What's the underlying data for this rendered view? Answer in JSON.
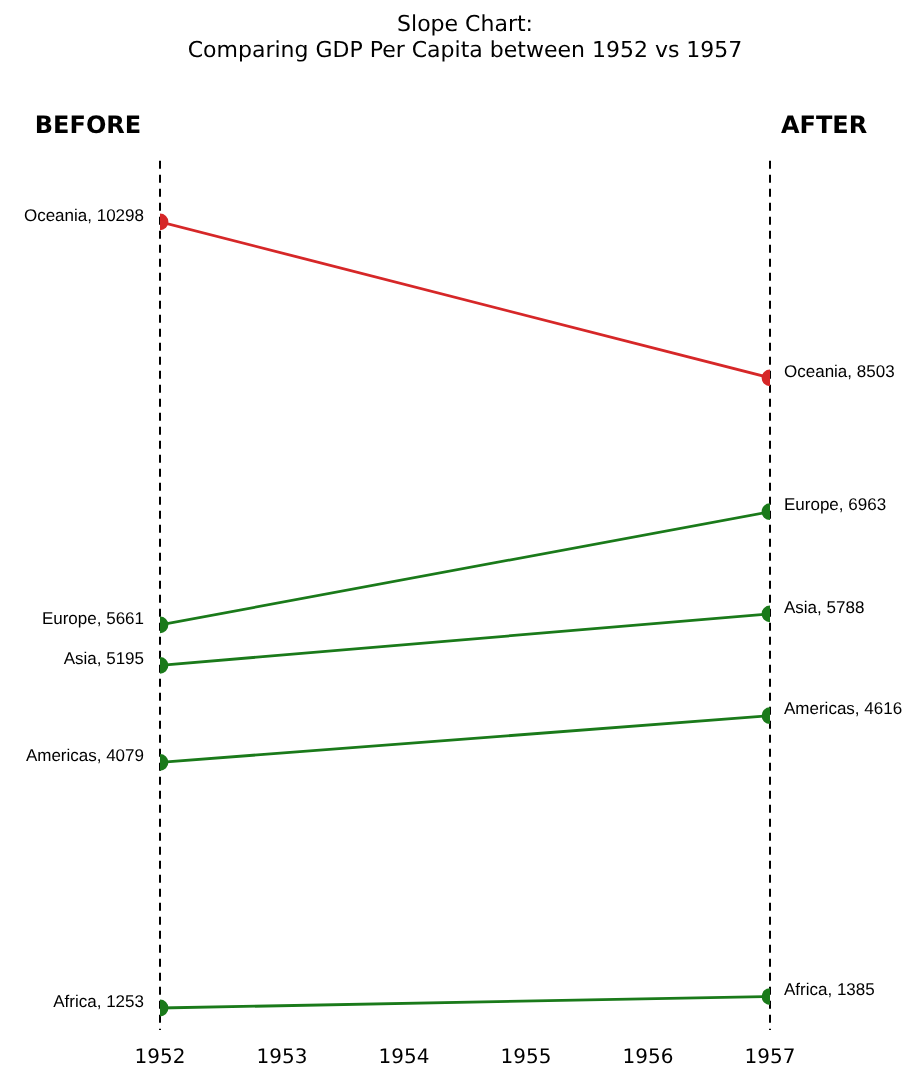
{
  "chart_data": {
    "type": "line",
    "title": "Slope Chart:\nComparing GDP Per Capita between 1952 vs 1957",
    "x": [
      1952,
      1957
    ],
    "xlim": [
      1952,
      1957
    ],
    "xticks": [
      1952,
      1953,
      1954,
      1955,
      1956,
      1957
    ],
    "tick_labels": "x",
    "series": [
      {
        "color": "#d62728",
        "values": [
          10298,
          8503
        ],
        "value_labels": [
          "Oceania, 10298",
          "Oceania, 8503"
        ]
      },
      {
        "color": "#1a7a1a",
        "values": [
          5661,
          6963
        ],
        "value_labels": [
          "Europe, 5661",
          "Europe, 6963"
        ]
      },
      {
        "color": "#1a7a1a",
        "values": [
          5195,
          5788
        ],
        "value_labels": [
          "Asia, 5195",
          "Asia, 5788"
        ]
      },
      {
        "color": "#1a7a1a",
        "values": [
          4079,
          4616
        ],
        "value_labels": [
          "Americas, 4079",
          "Americas, 4616"
        ]
      },
      {
        "color": "#1a7a1a",
        "values": [
          1253,
          1385
        ],
        "value_labels": [
          "Africa, 1253",
          "Africa, 1385"
        ]
      }
    ],
    "ref_lines": [
      {
        "axis": "x",
        "value": 1952,
        "label": "BEFORE",
        "color": "#000000",
        "line_style": "dashed"
      },
      {
        "axis": "x",
        "value": 1957,
        "label": "AFTER",
        "color": "#000000",
        "line_style": "dashed"
      }
    ],
    "marker": "circle",
    "line_style": "solid",
    "grid": false,
    "legend": false
  }
}
